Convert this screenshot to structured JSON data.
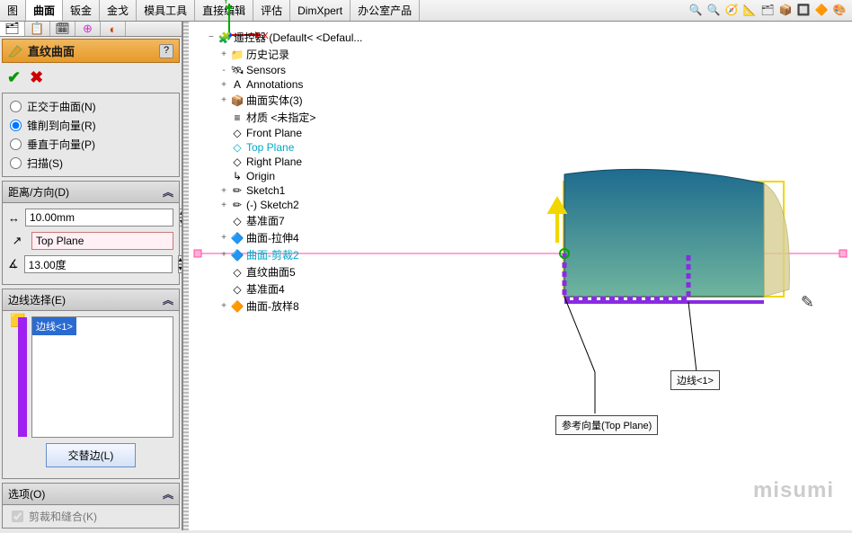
{
  "ribbon": {
    "tabs": [
      "图",
      "曲面",
      "钣金",
      "金戈",
      "模具工具",
      "直接编辑",
      "评估",
      "DimXpert",
      "办公室产品"
    ],
    "active": "曲面",
    "tool_icons": [
      "🔍",
      "🔍",
      "🧭",
      "📐",
      "🗂",
      "📦",
      "🔲",
      "🔶",
      "🎨"
    ]
  },
  "panel": {
    "title": "直纹曲面",
    "help": "?",
    "ok": "✔",
    "cancel": "✖",
    "radios": {
      "opt0": "正交于曲面(N)",
      "opt1": "锥削到向量(R)",
      "opt2": "垂直于向量(P)",
      "opt3": "扫描(S)"
    },
    "distance": {
      "label": "距离/方向(D)",
      "value": "10.00mm",
      "plane": "Top Plane",
      "angle": "13.00度"
    },
    "edges": {
      "label": "边线选择(E)",
      "item": "边线<1>",
      "alt_btn": "交替边(L)"
    },
    "options": {
      "label": "选项(O)",
      "chk0": "剪裁和缝合(K)"
    }
  },
  "tree": {
    "root": "遥控器  (Default< <Defaul...",
    "items": [
      {
        "icon": "📁",
        "text": "历史记录",
        "exp": "+"
      },
      {
        "icon": "🛰",
        "text": "Sensors",
        "exp": "-"
      },
      {
        "icon": "A",
        "text": "Annotations",
        "exp": "+"
      },
      {
        "icon": "📦",
        "text": "曲面实体(3)",
        "exp": "+"
      },
      {
        "icon": "≡",
        "text": "材质 <未指定>",
        "exp": ""
      },
      {
        "icon": "◇",
        "text": "Front Plane",
        "exp": ""
      },
      {
        "icon": "◇",
        "text": "Top Plane",
        "exp": "",
        "hl": true
      },
      {
        "icon": "◇",
        "text": "Right Plane",
        "exp": ""
      },
      {
        "icon": "↳",
        "text": "Origin",
        "exp": ""
      },
      {
        "icon": "✏",
        "text": "Sketch1",
        "exp": "+"
      },
      {
        "icon": "✏",
        "text": "(-) Sketch2",
        "exp": "+"
      },
      {
        "icon": "◇",
        "text": "基准面7",
        "exp": ""
      },
      {
        "icon": "🔷",
        "text": "曲面-拉伸4",
        "exp": "+"
      },
      {
        "icon": "🔷",
        "text": "曲面-剪裁2",
        "exp": "+",
        "hl": true
      },
      {
        "icon": "◇",
        "text": "直纹曲面5",
        "exp": ""
      },
      {
        "icon": "◇",
        "text": "基准面4",
        "exp": ""
      },
      {
        "icon": "🔶",
        "text": "曲面-放样8",
        "exp": "+"
      }
    ]
  },
  "viewport": {
    "callout_edge": "边线<1>",
    "callout_vector": "参考向量(Top Plane)",
    "watermark": "misumi",
    "axes": {
      "x": "X",
      "y": "Y"
    },
    "colors": {
      "surface_top": "#1e6b8f",
      "surface_bottom": "#6fb59e",
      "wing": "#d6cf93",
      "plane_outline": "#f2d600",
      "purple": "#8a2be2",
      "pink": "#ff4da6"
    }
  }
}
